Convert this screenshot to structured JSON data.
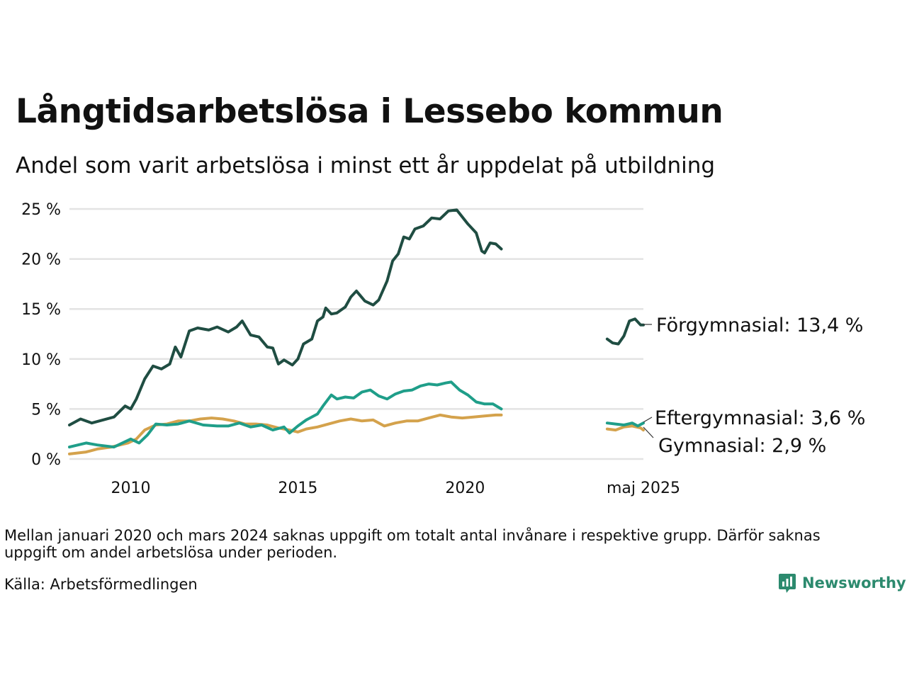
{
  "title": "Långtidsarbetslösa i Lessebo kommun",
  "subtitle": "Andel som varit arbetslösa i minst ett år uppdelat på utbildning",
  "note": "Mellan januari 2020 och mars 2024 saknas uppgift om totalt antal invånare i respektive grupp. Därför saknas uppgift om andel arbetslösa under perioden.",
  "source": "Källa: Arbetsförmedlingen",
  "logo_text": "Newsworthy",
  "chart_data": {
    "type": "line",
    "title": "Långtidsarbetslösa i Lessebo kommun",
    "subtitle": "Andel som varit arbetslösa i minst ett år uppdelat på utbildning",
    "ylim": [
      0,
      25
    ],
    "y_ticks": [
      "0 %",
      "5 %",
      "10 %",
      "15 %",
      "20 %",
      "25 %"
    ],
    "x_tick_labels": [
      "2010",
      "2015",
      "2020",
      "maj 2025"
    ],
    "grid": true,
    "legend": "inline labels at line ends (right)",
    "colors": {
      "forgymnasial": "#1f4d42",
      "eftergymnasial": "#1f9e89",
      "gymnasial": "#d4a24c"
    },
    "series": [
      {
        "name": "Förgymnasial",
        "end_label": "Förgymnasial: 13,4 %",
        "segments": [
          [
            [
              "2008-03",
              3.4
            ],
            [
              "2008-07",
              4.0
            ],
            [
              "2008-11",
              3.6
            ],
            [
              "2009-03",
              3.9
            ],
            [
              "2009-07",
              4.2
            ],
            [
              "2009-11",
              5.3
            ],
            [
              "2010-01",
              5.0
            ],
            [
              "2010-03",
              6.0
            ],
            [
              "2010-06",
              8.0
            ],
            [
              "2010-09",
              9.3
            ],
            [
              "2010-12",
              9.0
            ],
            [
              "2011-03",
              9.5
            ],
            [
              "2011-05",
              11.2
            ],
            [
              "2011-07",
              10.2
            ],
            [
              "2011-10",
              12.8
            ],
            [
              "2012-01",
              13.1
            ],
            [
              "2012-05",
              12.9
            ],
            [
              "2012-08",
              13.2
            ],
            [
              "2012-12",
              12.7
            ],
            [
              "2013-03",
              13.2
            ],
            [
              "2013-05",
              13.8
            ],
            [
              "2013-08",
              12.4
            ],
            [
              "2013-11",
              12.2
            ],
            [
              "2014-02",
              11.2
            ],
            [
              "2014-04",
              11.1
            ],
            [
              "2014-06",
              9.5
            ],
            [
              "2014-08",
              9.9
            ],
            [
              "2014-11",
              9.4
            ],
            [
              "2015-01",
              10.0
            ],
            [
              "2015-03",
              11.5
            ],
            [
              "2015-06",
              12.0
            ],
            [
              "2015-08",
              13.8
            ],
            [
              "2015-10",
              14.2
            ],
            [
              "2015-11",
              15.1
            ],
            [
              "2016-01",
              14.5
            ],
            [
              "2016-03",
              14.6
            ],
            [
              "2016-06",
              15.2
            ],
            [
              "2016-08",
              16.2
            ],
            [
              "2016-10",
              16.8
            ],
            [
              "2017-01",
              15.8
            ],
            [
              "2017-04",
              15.4
            ],
            [
              "2017-06",
              15.9
            ],
            [
              "2017-09",
              17.8
            ],
            [
              "2017-11",
              19.8
            ],
            [
              "2018-01",
              20.5
            ],
            [
              "2018-03",
              22.2
            ],
            [
              "2018-05",
              22.0
            ],
            [
              "2018-07",
              23.0
            ],
            [
              "2018-10",
              23.3
            ],
            [
              "2019-01",
              24.1
            ],
            [
              "2019-04",
              24.0
            ],
            [
              "2019-07",
              24.8
            ],
            [
              "2019-10",
              24.9
            ],
            [
              "2019-12",
              24.2
            ],
            [
              "2020-02",
              23.5
            ],
            [
              "2020-05",
              22.6
            ],
            [
              "2020-07",
              20.8
            ],
            [
              "2020-08",
              20.6
            ],
            [
              "2020-10",
              21.6
            ],
            [
              "2020-12",
              21.5
            ],
            [
              "2021-02",
              21.0
            ]
          ],
          [
            [
              "2024-04",
              12.0
            ],
            [
              "2024-06",
              11.6
            ],
            [
              "2024-08",
              11.5
            ],
            [
              "2024-10",
              12.3
            ],
            [
              "2024-12",
              13.8
            ],
            [
              "2025-02",
              14.0
            ],
            [
              "2025-04",
              13.4
            ],
            [
              "2025-05",
              13.4
            ]
          ]
        ]
      },
      {
        "name": "Eftergymnasial",
        "end_label": "Eftergymnasial:  3,6 %",
        "segments": [
          [
            [
              "2008-03",
              1.2
            ],
            [
              "2008-09",
              1.6
            ],
            [
              "2009-01",
              1.4
            ],
            [
              "2009-07",
              1.2
            ],
            [
              "2010-01",
              2.0
            ],
            [
              "2010-04",
              1.6
            ],
            [
              "2010-07",
              2.4
            ],
            [
              "2010-10",
              3.5
            ],
            [
              "2011-02",
              3.4
            ],
            [
              "2011-06",
              3.5
            ],
            [
              "2011-10",
              3.8
            ],
            [
              "2012-03",
              3.4
            ],
            [
              "2012-08",
              3.3
            ],
            [
              "2012-12",
              3.3
            ],
            [
              "2013-04",
              3.6
            ],
            [
              "2013-08",
              3.2
            ],
            [
              "2013-12",
              3.4
            ],
            [
              "2014-04",
              2.9
            ],
            [
              "2014-08",
              3.2
            ],
            [
              "2014-10",
              2.6
            ],
            [
              "2015-01",
              3.3
            ],
            [
              "2015-04",
              3.9
            ],
            [
              "2015-08",
              4.5
            ],
            [
              "2015-10",
              5.3
            ],
            [
              "2016-01",
              6.4
            ],
            [
              "2016-03",
              6.0
            ],
            [
              "2016-06",
              6.2
            ],
            [
              "2016-09",
              6.1
            ],
            [
              "2016-12",
              6.7
            ],
            [
              "2017-03",
              6.9
            ],
            [
              "2017-06",
              6.3
            ],
            [
              "2017-09",
              6.0
            ],
            [
              "2017-12",
              6.5
            ],
            [
              "2018-03",
              6.8
            ],
            [
              "2018-06",
              6.9
            ],
            [
              "2018-09",
              7.3
            ],
            [
              "2018-12",
              7.5
            ],
            [
              "2019-03",
              7.4
            ],
            [
              "2019-06",
              7.6
            ],
            [
              "2019-08",
              7.7
            ],
            [
              "2019-11",
              6.9
            ],
            [
              "2020-02",
              6.4
            ],
            [
              "2020-05",
              5.7
            ],
            [
              "2020-08",
              5.5
            ],
            [
              "2020-11",
              5.5
            ],
            [
              "2021-02",
              5.0
            ]
          ],
          [
            [
              "2024-04",
              3.6
            ],
            [
              "2024-07",
              3.5
            ],
            [
              "2024-10",
              3.4
            ],
            [
              "2025-01",
              3.6
            ],
            [
              "2025-03",
              3.3
            ],
            [
              "2025-05",
              3.6
            ]
          ]
        ]
      },
      {
        "name": "Gymnasial",
        "end_label": "Gymnasial:  2,9 %",
        "segments": [
          [
            [
              "2008-03",
              0.5
            ],
            [
              "2008-09",
              0.7
            ],
            [
              "2009-01",
              1.0
            ],
            [
              "2009-06",
              1.2
            ],
            [
              "2009-12",
              1.6
            ],
            [
              "2010-03",
              2.0
            ],
            [
              "2010-06",
              2.9
            ],
            [
              "2010-10",
              3.4
            ],
            [
              "2011-02",
              3.5
            ],
            [
              "2011-06",
              3.8
            ],
            [
              "2011-10",
              3.8
            ],
            [
              "2012-02",
              4.0
            ],
            [
              "2012-06",
              4.1
            ],
            [
              "2012-10",
              4.0
            ],
            [
              "2013-02",
              3.8
            ],
            [
              "2013-06",
              3.5
            ],
            [
              "2013-10",
              3.5
            ],
            [
              "2014-02",
              3.4
            ],
            [
              "2014-06",
              3.1
            ],
            [
              "2014-10",
              2.9
            ],
            [
              "2015-01",
              2.7
            ],
            [
              "2015-04",
              3.0
            ],
            [
              "2015-08",
              3.2
            ],
            [
              "2015-12",
              3.5
            ],
            [
              "2016-04",
              3.8
            ],
            [
              "2016-08",
              4.0
            ],
            [
              "2016-12",
              3.8
            ],
            [
              "2017-04",
              3.9
            ],
            [
              "2017-08",
              3.3
            ],
            [
              "2017-12",
              3.6
            ],
            [
              "2018-04",
              3.8
            ],
            [
              "2018-08",
              3.8
            ],
            [
              "2018-12",
              4.1
            ],
            [
              "2019-04",
              4.4
            ],
            [
              "2019-08",
              4.2
            ],
            [
              "2019-12",
              4.1
            ],
            [
              "2020-04",
              4.2
            ],
            [
              "2020-08",
              4.3
            ],
            [
              "2020-12",
              4.4
            ],
            [
              "2021-02",
              4.4
            ]
          ],
          [
            [
              "2024-04",
              3.0
            ],
            [
              "2024-07",
              2.9
            ],
            [
              "2024-10",
              3.2
            ],
            [
              "2025-01",
              3.3
            ],
            [
              "2025-04",
              3.1
            ],
            [
              "2025-05",
              2.9
            ]
          ]
        ]
      }
    ]
  }
}
